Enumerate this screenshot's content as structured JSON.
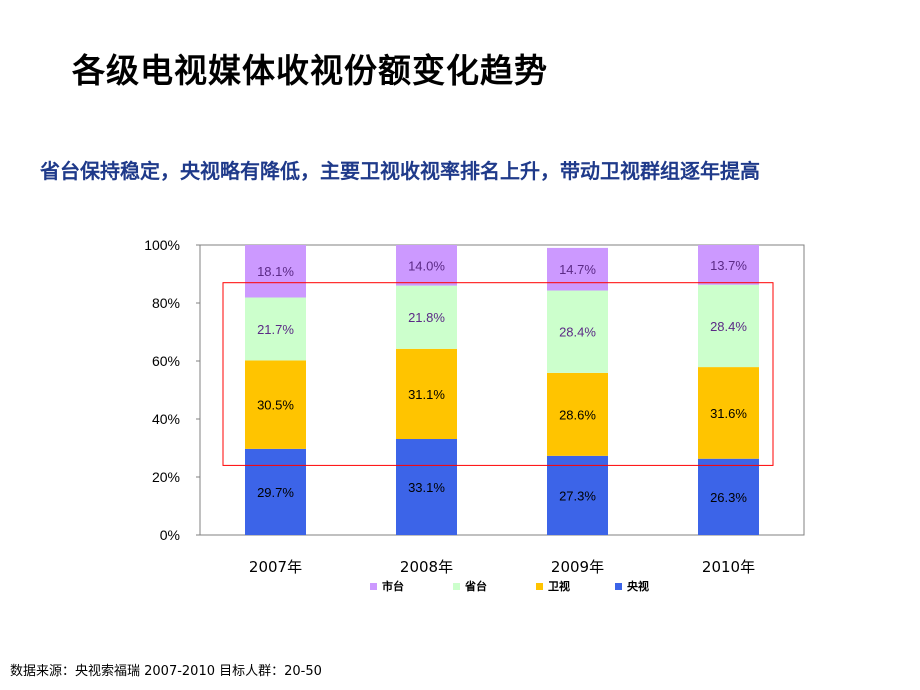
{
  "page": {
    "title": "各级电视媒体收视份额变化趋势",
    "subtitle": "省台保持稳定，央视略有降低，主要卫视收视率排名上升，带动卫视群组逐年提高",
    "source": "数据来源：央视索福瑞 2007-2010  目标人群：20-50"
  },
  "chart_data": {
    "type": "bar",
    "stacked": true,
    "categories": [
      "2007年",
      "2008年",
      "2009年",
      "2010年"
    ],
    "series": [
      {
        "name": "央视",
        "values": [
          29.7,
          33.1,
          27.3,
          26.3
        ],
        "labels": [
          "29.7%",
          "33.1%",
          "27.3%",
          "26.3%"
        ],
        "color": "#3c64e8",
        "label_color": "#000000"
      },
      {
        "name": "卫视",
        "values": [
          30.5,
          31.1,
          28.6,
          31.6
        ],
        "labels": [
          "30.5%",
          "31.1%",
          "28.6%",
          "31.6%"
        ],
        "color": "#ffc400",
        "label_color": "#000000"
      },
      {
        "name": "省台",
        "values": [
          21.7,
          21.8,
          28.4,
          28.4
        ],
        "labels": [
          "21.7%",
          "21.8%",
          "28.4%",
          "28.4%"
        ],
        "color": "#ccffcc",
        "label_color": "#5b2a86"
      },
      {
        "name": "市台",
        "values": [
          18.1,
          14.0,
          14.7,
          13.7
        ],
        "labels": [
          "18.1%",
          "14.0%",
          "14.7%",
          "13.7%"
        ],
        "color": "#cc99ff",
        "label_color": "#5b2a86"
      }
    ],
    "yticks": [
      "0%",
      "20%",
      "40%",
      "60%",
      "80%",
      "100%"
    ],
    "ylim": [
      0,
      100
    ],
    "legend_order": [
      "市台",
      "省台",
      "卫视",
      "央视"
    ],
    "legend_position": "bottom",
    "highlight_box": {
      "from_value": 24,
      "to_value": 87,
      "color": "#ff0000"
    }
  }
}
